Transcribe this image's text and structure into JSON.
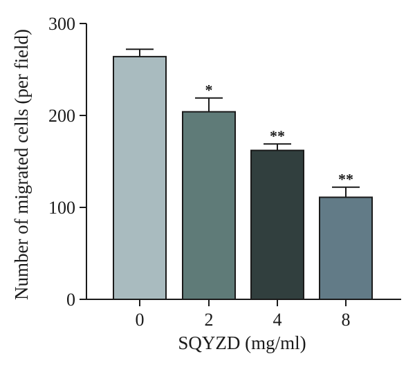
{
  "chart_data": {
    "type": "bar",
    "categories": [
      "0",
      "2",
      "4",
      "8"
    ],
    "values": [
      264,
      204,
      162,
      111
    ],
    "errors": [
      8,
      15,
      7,
      11
    ],
    "significance": [
      "",
      "*",
      "**",
      "**"
    ],
    "bar_colors": [
      "#a9bbbf",
      "#5f7b78",
      "#313f3e",
      "#627b87"
    ],
    "title": "",
    "xlabel": "SQYZD (mg/ml)",
    "ylabel": "Number of migrated cells (per field)",
    "ylim": [
      0,
      300
    ],
    "yticks": [
      "0",
      "100",
      "200",
      "300"
    ],
    "grid": false
  }
}
